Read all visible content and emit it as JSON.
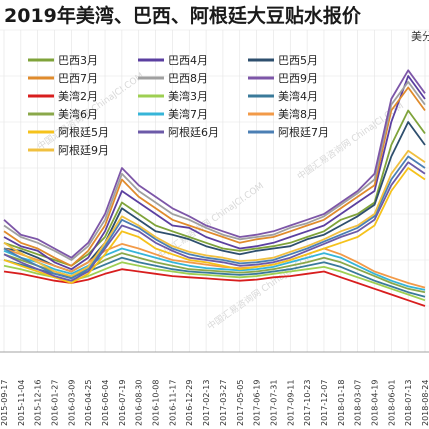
{
  "chart_data": {
    "type": "line",
    "title": "2019年美湾、巴西、阿根廷大豆贴水报价",
    "unit_label": "美分",
    "grid": true,
    "x_labels": [
      "2015-09-17",
      "2015-11-04",
      "2015-12-16",
      "2016-01-27",
      "2016-03-09",
      "2016-04-25",
      "2016-06-04",
      "2016-07-19",
      "2016-08-30",
      "2016-10-08",
      "2016-11-17",
      "2016-12-29",
      "2017-02-13",
      "2017-03-27",
      "2017-05-05",
      "2017-06-19",
      "2017-07-31",
      "2017-09-11",
      "2017-10-23",
      "2017-12-07",
      "2018-01-18",
      "2018-03-07",
      "2018-04-19",
      "2018-06-01",
      "2018-07-13",
      "2018-08-24"
    ],
    "ylim": [
      -60,
      220
    ],
    "series": [
      {
        "name": "巴西3月",
        "color": "#7fa33a",
        "values": [
          35,
          30,
          25,
          20,
          15,
          25,
          40,
          70,
          60,
          50,
          45,
          40,
          35,
          30,
          28,
          30,
          32,
          35,
          40,
          45,
          55,
          60,
          70,
          120,
          150,
          130
        ]
      },
      {
        "name": "巴西4月",
        "color": "#5b3fa0",
        "values": [
          40,
          32,
          28,
          18,
          12,
          22,
          45,
          80,
          70,
          60,
          50,
          48,
          40,
          35,
          30,
          32,
          35,
          40,
          45,
          50,
          60,
          70,
          80,
          140,
          180,
          160
        ]
      },
      {
        "name": "巴西5月",
        "color": "#2e4f6e",
        "values": [
          30,
          28,
          22,
          15,
          10,
          18,
          35,
          65,
          55,
          45,
          42,
          38,
          32,
          28,
          25,
          28,
          30,
          32,
          38,
          42,
          50,
          58,
          68,
          110,
          140,
          120
        ]
      },
      {
        "name": "巴西7月",
        "color": "#e08b2c",
        "values": [
          45,
          35,
          30,
          22,
          15,
          28,
          50,
          90,
          75,
          65,
          55,
          50,
          45,
          40,
          35,
          38,
          40,
          45,
          50,
          55,
          65,
          75,
          85,
          150,
          170,
          150
        ]
      },
      {
        "name": "巴西8月",
        "color": "#a0a0a0",
        "values": [
          50,
          40,
          35,
          28,
          20,
          32,
          55,
          95,
          80,
          70,
          60,
          55,
          48,
          42,
          38,
          40,
          42,
          48,
          52,
          58,
          68,
          78,
          90,
          155,
          175,
          155
        ]
      },
      {
        "name": "巴西9月",
        "color": "#7d56a8",
        "values": [
          55,
          42,
          38,
          30,
          22,
          35,
          60,
          100,
          85,
          75,
          65,
          58,
          50,
          45,
          40,
          42,
          45,
          50,
          55,
          60,
          70,
          80,
          95,
          160,
          185,
          165
        ]
      },
      {
        "name": "美湾2月",
        "color": "#d81e1e",
        "values": [
          10,
          8,
          5,
          2,
          0,
          3,
          8,
          12,
          10,
          8,
          6,
          5,
          4,
          3,
          2,
          3,
          5,
          6,
          8,
          10,
          5,
          0,
          -5,
          -10,
          -15,
          -20
        ]
      },
      {
        "name": "美湾3月",
        "color": "#9ecf52",
        "values": [
          15,
          12,
          8,
          5,
          2,
          6,
          12,
          18,
          15,
          12,
          10,
          8,
          7,
          6,
          5,
          6,
          8,
          10,
          12,
          14,
          10,
          5,
          0,
          -5,
          -10,
          -15
        ]
      },
      {
        "name": "美湾4月",
        "color": "#3a7a9a",
        "values": [
          20,
          16,
          12,
          8,
          5,
          10,
          16,
          22,
          18,
          15,
          12,
          10,
          9,
          8,
          7,
          8,
          10,
          12,
          15,
          18,
          14,
          8,
          2,
          -3,
          -8,
          -12
        ]
      },
      {
        "name": "美湾6月",
        "color": "#8aa84a",
        "values": [
          25,
          20,
          15,
          10,
          6,
          12,
          20,
          26,
          22,
          18,
          15,
          12,
          11,
          10,
          9,
          10,
          12,
          15,
          18,
          22,
          18,
          12,
          6,
          0,
          -5,
          -8
        ]
      },
      {
        "name": "美湾7月",
        "color": "#36b5d8",
        "values": [
          28,
          22,
          18,
          12,
          8,
          15,
          24,
          30,
          26,
          22,
          18,
          15,
          13,
          12,
          11,
          12,
          14,
          18,
          22,
          26,
          22,
          15,
          8,
          2,
          -3,
          -6
        ]
      },
      {
        "name": "美湾8月",
        "color": "#f29a48",
        "values": [
          30,
          25,
          20,
          15,
          10,
          18,
          28,
          34,
          30,
          25,
          20,
          18,
          16,
          14,
          13,
          14,
          16,
          20,
          25,
          30,
          25,
          18,
          10,
          5,
          0,
          -4
        ]
      },
      {
        "name": "阿根廷5月",
        "color": "#f5c21b",
        "values": [
          20,
          15,
          10,
          5,
          0,
          8,
          25,
          45,
          40,
          30,
          25,
          20,
          18,
          15,
          12,
          14,
          16,
          20,
          25,
          30,
          35,
          40,
          50,
          80,
          100,
          90
        ]
      },
      {
        "name": "阿根廷6月",
        "color": "#6c5aa8",
        "values": [
          25,
          18,
          12,
          6,
          2,
          10,
          30,
          50,
          45,
          35,
          28,
          22,
          20,
          18,
          15,
          16,
          18,
          22,
          28,
          34,
          40,
          45,
          55,
          85,
          105,
          95
        ]
      },
      {
        "name": "阿根廷7月",
        "color": "#4b7fb4",
        "values": [
          30,
          22,
          15,
          8,
          4,
          12,
          32,
          55,
          48,
          38,
          30,
          25,
          22,
          20,
          17,
          18,
          20,
          25,
          30,
          36,
          42,
          48,
          58,
          90,
          110,
          100
        ]
      },
      {
        "name": "阿根廷9月",
        "color": "#f0c040",
        "values": [
          35,
          26,
          18,
          10,
          6,
          14,
          35,
          58,
          50,
          40,
          32,
          27,
          24,
          22,
          19,
          20,
          22,
          27,
          32,
          38,
          45,
          50,
          60,
          95,
          115,
          105
        ]
      }
    ],
    "legend_columns": 3,
    "legend_rows": [
      [
        "巴西3月",
        "巴西4月",
        "巴西5月"
      ],
      [
        "巴西7月",
        "巴西8月",
        "巴西9月"
      ],
      [
        "美湾2月",
        "美湾3月",
        "美湾4月"
      ],
      [
        "美湾6月",
        "美湾7月",
        "美湾8月"
      ],
      [
        "阿根廷5月",
        "阿根廷6月",
        "阿根廷7月"
      ],
      [
        "阿根廷9月"
      ]
    ],
    "watermark_text": "中国汇易咨询网 ChinaJCI.COM"
  }
}
